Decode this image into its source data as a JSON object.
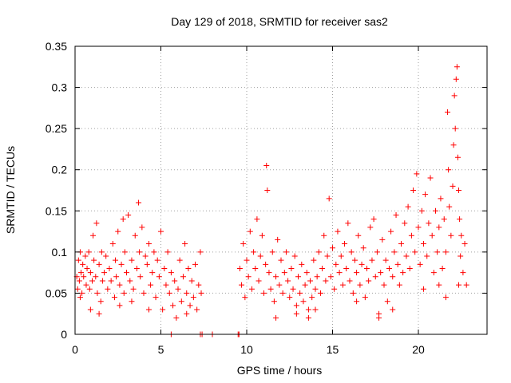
{
  "chart_data": {
    "type": "scatter",
    "title": "Day 129 of 2018, SRMTID for receiver sas2",
    "xlabel": "GPS time / hours",
    "ylabel": "SRMTID / TECUs",
    "xlim": [
      0,
      24
    ],
    "ylim": [
      0,
      0.35
    ],
    "xticks": [
      0,
      5,
      10,
      15,
      20
    ],
    "yticks": [
      0,
      0.05,
      0.1,
      0.15,
      0.2,
      0.25,
      0.3,
      0.35
    ],
    "ytick_labels": [
      "0",
      "0.05",
      "0.1",
      "0.15",
      "0.2",
      "0.25",
      "0.3",
      "0.35"
    ],
    "grid": true,
    "marker": "+",
    "color": "#ff0000",
    "series": [
      {
        "name": "SRMTID",
        "points": [
          [
            0.1,
            0.07
          ],
          [
            0.15,
            0.055
          ],
          [
            0.2,
            0.09
          ],
          [
            0.25,
            0.065
          ],
          [
            0.3,
            0.1
          ],
          [
            0.35,
            0.075
          ],
          [
            0.4,
            0.05
          ],
          [
            0.45,
            0.085
          ],
          [
            0.5,
            0.07
          ],
          [
            0.6,
            0.095
          ],
          [
            0.65,
            0.06
          ],
          [
            0.7,
            0.08
          ],
          [
            0.8,
            0.1
          ],
          [
            0.85,
            0.055
          ],
          [
            0.9,
            0.075
          ],
          [
            1.0,
            0.065
          ],
          [
            1.05,
            0.12
          ],
          [
            1.1,
            0.09
          ],
          [
            1.2,
            0.07
          ],
          [
            1.25,
            0.135
          ],
          [
            1.3,
            0.05
          ],
          [
            1.4,
            0.085
          ],
          [
            1.5,
            0.04
          ],
          [
            1.55,
            0.1
          ],
          [
            1.6,
            0.065
          ],
          [
            1.7,
            0.075
          ],
          [
            1.8,
            0.095
          ],
          [
            1.9,
            0.055
          ],
          [
            2.0,
            0.08
          ],
          [
            2.1,
            0.065
          ],
          [
            2.2,
            0.11
          ],
          [
            2.3,
            0.045
          ],
          [
            2.35,
            0.09
          ],
          [
            2.4,
            0.07
          ],
          [
            2.5,
            0.125
          ],
          [
            2.6,
            0.06
          ],
          [
            2.7,
            0.085
          ],
          [
            2.8,
            0.14
          ],
          [
            2.85,
            0.05
          ],
          [
            2.9,
            0.1
          ],
          [
            3.0,
            0.075
          ],
          [
            3.1,
            0.145
          ],
          [
            3.2,
            0.065
          ],
          [
            3.3,
            0.09
          ],
          [
            3.4,
            0.055
          ],
          [
            3.5,
            0.12
          ],
          [
            3.6,
            0.08
          ],
          [
            3.7,
            0.16
          ],
          [
            3.75,
            0.1
          ],
          [
            3.8,
            0.07
          ],
          [
            3.9,
            0.13
          ],
          [
            4.0,
            0.05
          ],
          [
            4.1,
            0.095
          ],
          [
            4.2,
            0.085
          ],
          [
            4.3,
            0.11
          ],
          [
            4.4,
            0.06
          ],
          [
            4.5,
            0.075
          ],
          [
            4.6,
            0.1
          ],
          [
            4.7,
            0.045
          ],
          [
            4.8,
            0.09
          ],
          [
            4.9,
            0.07
          ],
          [
            5.0,
            0.125
          ],
          [
            5.1,
            0.03
          ],
          [
            5.2,
            0.08
          ],
          [
            5.3,
            0.06
          ],
          [
            5.4,
            0.1
          ],
          [
            5.5,
            0.05
          ],
          [
            5.6,
            0.075
          ],
          [
            5.7,
            0.035
          ],
          [
            5.8,
            0.065
          ],
          [
            5.9,
            0.02
          ],
          [
            6.0,
            0.055
          ],
          [
            6.1,
            0.09
          ],
          [
            6.2,
            0.04
          ],
          [
            6.3,
            0.07
          ],
          [
            6.4,
            0.11
          ],
          [
            6.5,
            0.05
          ],
          [
            6.6,
            0.08
          ],
          [
            6.7,
            0.035
          ],
          [
            6.8,
            0.065
          ],
          [
            6.9,
            0.045
          ],
          [
            7.0,
            0.085
          ],
          [
            7.1,
            0.03
          ],
          [
            7.2,
            0.06
          ],
          [
            7.3,
            0.1
          ],
          [
            7.35,
            0.05
          ],
          [
            5.6,
            0.0
          ],
          [
            7.3,
            0.0
          ],
          [
            7.4,
            0.0
          ],
          [
            9.5,
            0.0
          ],
          [
            9.6,
            0.08
          ],
          [
            9.7,
            0.06
          ],
          [
            9.8,
            0.11
          ],
          [
            9.9,
            0.045
          ],
          [
            10.0,
            0.09
          ],
          [
            10.1,
            0.07
          ],
          [
            10.2,
            0.125
          ],
          [
            10.3,
            0.055
          ],
          [
            10.4,
            0.1
          ],
          [
            10.5,
            0.08
          ],
          [
            10.6,
            0.14
          ],
          [
            10.7,
            0.065
          ],
          [
            10.8,
            0.095
          ],
          [
            10.9,
            0.12
          ],
          [
            11.0,
            0.05
          ],
          [
            11.1,
            0.085
          ],
          [
            11.15,
            0.205
          ],
          [
            11.2,
            0.175
          ],
          [
            11.3,
            0.075
          ],
          [
            11.4,
            0.055
          ],
          [
            11.5,
            0.1
          ],
          [
            11.6,
            0.04
          ],
          [
            11.7,
            0.07
          ],
          [
            11.8,
            0.115
          ],
          [
            11.9,
            0.06
          ],
          [
            12.0,
            0.09
          ],
          [
            12.1,
            0.05
          ],
          [
            12.2,
            0.075
          ],
          [
            12.3,
            0.1
          ],
          [
            12.4,
            0.065
          ],
          [
            12.5,
            0.045
          ],
          [
            12.6,
            0.08
          ],
          [
            12.7,
            0.055
          ],
          [
            12.8,
            0.095
          ],
          [
            12.9,
            0.035
          ],
          [
            13.0,
            0.07
          ],
          [
            13.1,
            0.05
          ],
          [
            13.2,
            0.085
          ],
          [
            13.3,
            0.04
          ],
          [
            13.4,
            0.06
          ],
          [
            13.5,
            0.075
          ],
          [
            13.6,
            0.03
          ],
          [
            13.7,
            0.065
          ],
          [
            13.8,
            0.045
          ],
          [
            13.9,
            0.09
          ],
          [
            14.0,
            0.055
          ],
          [
            14.1,
            0.07
          ],
          [
            14.2,
            0.1
          ],
          [
            14.3,
            0.05
          ],
          [
            14.4,
            0.08
          ],
          [
            14.5,
            0.12
          ],
          [
            14.6,
            0.065
          ],
          [
            14.7,
            0.095
          ],
          [
            14.8,
            0.165
          ],
          [
            14.9,
            0.07
          ],
          [
            15.0,
            0.105
          ],
          [
            15.1,
            0.055
          ],
          [
            15.2,
            0.085
          ],
          [
            15.3,
            0.125
          ],
          [
            15.4,
            0.075
          ],
          [
            15.5,
            0.095
          ],
          [
            15.6,
            0.06
          ],
          [
            15.7,
            0.11
          ],
          [
            15.8,
            0.08
          ],
          [
            15.9,
            0.135
          ],
          [
            16.0,
            0.065
          ],
          [
            16.1,
            0.1
          ],
          [
            16.2,
            0.05
          ],
          [
            16.3,
            0.09
          ],
          [
            16.4,
            0.075
          ],
          [
            16.5,
            0.12
          ],
          [
            16.6,
            0.06
          ],
          [
            16.7,
            0.085
          ],
          [
            16.8,
            0.105
          ],
          [
            16.9,
            0.045
          ],
          [
            17.0,
            0.08
          ],
          [
            17.1,
            0.065
          ],
          [
            17.2,
            0.13
          ],
          [
            17.3,
            0.09
          ],
          [
            17.4,
            0.14
          ],
          [
            17.5,
            0.07
          ],
          [
            17.6,
            0.1
          ],
          [
            17.7,
            0.025
          ],
          [
            17.8,
            0.075
          ],
          [
            17.9,
            0.115
          ],
          [
            18.0,
            0.06
          ],
          [
            18.1,
            0.09
          ],
          [
            18.2,
            0.04
          ],
          [
            18.3,
            0.08
          ],
          [
            18.4,
            0.125
          ],
          [
            18.5,
            0.07
          ],
          [
            18.6,
            0.1
          ],
          [
            18.7,
            0.145
          ],
          [
            18.8,
            0.085
          ],
          [
            18.9,
            0.06
          ],
          [
            19.0,
            0.11
          ],
          [
            19.1,
            0.075
          ],
          [
            19.2,
            0.135
          ],
          [
            19.3,
            0.095
          ],
          [
            19.4,
            0.155
          ],
          [
            19.5,
            0.08
          ],
          [
            19.6,
            0.12
          ],
          [
            19.7,
            0.175
          ],
          [
            19.8,
            0.1
          ],
          [
            19.9,
            0.195
          ],
          [
            20.0,
            0.13
          ],
          [
            20.1,
            0.085
          ],
          [
            20.2,
            0.15
          ],
          [
            20.3,
            0.11
          ],
          [
            20.4,
            0.17
          ],
          [
            20.5,
            0.095
          ],
          [
            20.6,
            0.135
          ],
          [
            20.7,
            0.19
          ],
          [
            20.8,
            0.12
          ],
          [
            20.9,
            0.075
          ],
          [
            21.0,
            0.15
          ],
          [
            21.1,
            0.1
          ],
          [
            21.2,
            0.13
          ],
          [
            21.3,
            0.165
          ],
          [
            21.4,
            0.08
          ],
          [
            21.5,
            0.14
          ],
          [
            21.6,
            0.1
          ],
          [
            21.7,
            0.27
          ],
          [
            21.75,
            0.2
          ],
          [
            21.8,
            0.155
          ],
          [
            21.9,
            0.12
          ],
          [
            22.0,
            0.18
          ],
          [
            22.05,
            0.23
          ],
          [
            22.1,
            0.29
          ],
          [
            22.15,
            0.25
          ],
          [
            22.2,
            0.31
          ],
          [
            22.25,
            0.325
          ],
          [
            22.3,
            0.215
          ],
          [
            22.35,
            0.175
          ],
          [
            22.4,
            0.14
          ],
          [
            22.45,
            0.095
          ],
          [
            22.5,
            0.12
          ],
          [
            22.6,
            0.075
          ],
          [
            22.7,
            0.11
          ],
          [
            22.8,
            0.06
          ],
          [
            0.3,
            0.045
          ],
          [
            0.9,
            0.03
          ],
          [
            1.4,
            0.025
          ],
          [
            2.6,
            0.035
          ],
          [
            3.3,
            0.04
          ],
          [
            4.3,
            0.03
          ],
          [
            6.5,
            0.025
          ],
          [
            8.0,
            0.0
          ],
          [
            9.55,
            0.0
          ],
          [
            12.9,
            0.025
          ],
          [
            14.0,
            0.03
          ],
          [
            16.4,
            0.04
          ],
          [
            18.5,
            0.03
          ],
          [
            20.3,
            0.055
          ],
          [
            21.2,
            0.06
          ],
          [
            21.6,
            0.045
          ],
          [
            22.35,
            0.06
          ],
          [
            11.7,
            0.02
          ],
          [
            13.6,
            0.02
          ],
          [
            17.7,
            0.02
          ]
        ]
      }
    ]
  }
}
